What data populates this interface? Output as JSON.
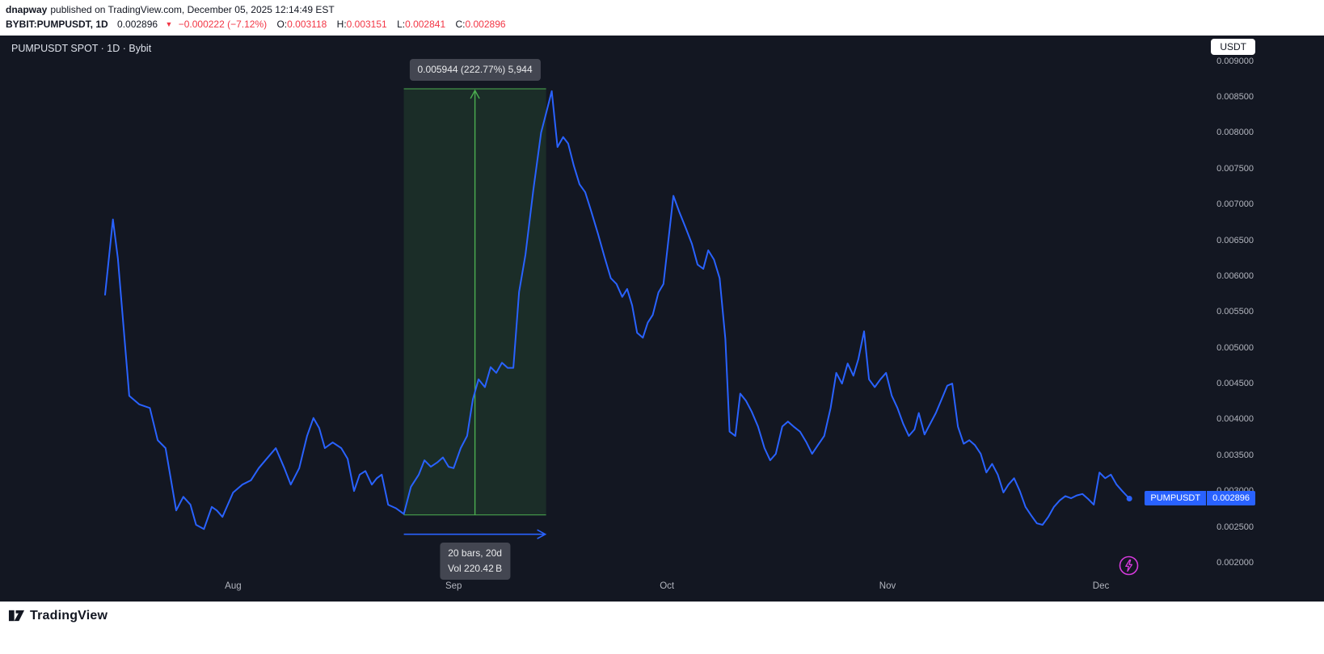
{
  "publish_bar": {
    "author": "dnapway",
    "published_info": "published on TradingView.com, December 05, 2025 12:14:49 EST",
    "symbol": "BYBIT:PUMPUSDT, 1D",
    "last_price": "0.002896",
    "down_arrow": "▼",
    "change": "−0.000222 (−7.12%)",
    "ohlc": {
      "o_label": "O:",
      "o": "0.003118",
      "h_label": "H:",
      "h": "0.003151",
      "l_label": "L:",
      "l": "0.002841",
      "c_label": "C:",
      "c": "0.002896"
    }
  },
  "chart": {
    "title": "PUMPUSDT SPOT · 1D · Bybit",
    "currency_button": "USDT",
    "price_badge": {
      "symbol": "PUMPUSDT",
      "price": "0.002896"
    }
  },
  "chart_data": {
    "type": "line",
    "title": "PUMPUSDT SPOT · 1D · Bybit",
    "symbol": "BYBIT:PUMPUSDT",
    "interval": "1D",
    "quote_currency": "USDT",
    "x_axis": {
      "start_date": "2025-07-14",
      "end_date": "2025-12-05",
      "unit": "day_offset_from_start_date"
    },
    "xlim": [
      0,
      144
    ],
    "ylim": [
      0.0018,
      0.00932
    ],
    "grid": false,
    "legend": false,
    "last_price": 0.002896,
    "x_ticks": [
      {
        "label": "Aug",
        "day": 18
      },
      {
        "label": "Sep",
        "day": 49
      },
      {
        "label": "Oct",
        "day": 79
      },
      {
        "label": "Nov",
        "day": 110
      },
      {
        "label": "Dec",
        "day": 140
      }
    ],
    "y_ticks": [
      0.009,
      0.0085,
      0.008,
      0.0075,
      0.007,
      0.0065,
      0.006,
      0.0055,
      0.005,
      0.0045,
      0.004,
      0.0035,
      0.003,
      0.0025,
      0.002
    ],
    "points": [
      [
        0,
        0.00574
      ],
      [
        1.1,
        0.00679
      ],
      [
        1.8,
        0.00625
      ],
      [
        3.4,
        0.00433
      ],
      [
        4.8,
        0.00421
      ],
      [
        6.3,
        0.00416
      ],
      [
        7.4,
        0.00371
      ],
      [
        8.5,
        0.0036
      ],
      [
        10,
        0.00273
      ],
      [
        11,
        0.00292
      ],
      [
        12,
        0.00281
      ],
      [
        12.8,
        0.00253
      ],
      [
        13.9,
        0.00247
      ],
      [
        15,
        0.00278
      ],
      [
        15.7,
        0.00273
      ],
      [
        16.5,
        0.00264
      ],
      [
        18,
        0.00298
      ],
      [
        19.3,
        0.00309
      ],
      [
        20.5,
        0.00315
      ],
      [
        21.6,
        0.00332
      ],
      [
        22.7,
        0.00345
      ],
      [
        24,
        0.0036
      ],
      [
        25.2,
        0.00332
      ],
      [
        26.1,
        0.00309
      ],
      [
        27.3,
        0.00332
      ],
      [
        28.4,
        0.00377
      ],
      [
        29.3,
        0.00402
      ],
      [
        30.1,
        0.00388
      ],
      [
        30.9,
        0.0036
      ],
      [
        32,
        0.00368
      ],
      [
        33.2,
        0.0036
      ],
      [
        34.1,
        0.00345
      ],
      [
        35,
        0.003
      ],
      [
        35.8,
        0.00323
      ],
      [
        36.6,
        0.00328
      ],
      [
        37.5,
        0.00309
      ],
      [
        38.2,
        0.00318
      ],
      [
        38.9,
        0.00323
      ],
      [
        39.8,
        0.00281
      ],
      [
        40.9,
        0.00276
      ],
      [
        42,
        0.00268
      ],
      [
        43,
        0.00306
      ],
      [
        44.1,
        0.00323
      ],
      [
        44.9,
        0.00343
      ],
      [
        45.8,
        0.00334
      ],
      [
        46.7,
        0.0034
      ],
      [
        47.5,
        0.00347
      ],
      [
        48.3,
        0.00334
      ],
      [
        49,
        0.00332
      ],
      [
        50,
        0.0036
      ],
      [
        50.9,
        0.00377
      ],
      [
        51.7,
        0.00428
      ],
      [
        52.5,
        0.00456
      ],
      [
        53.4,
        0.00445
      ],
      [
        54.2,
        0.00473
      ],
      [
        55,
        0.00465
      ],
      [
        55.8,
        0.00479
      ],
      [
        56.6,
        0.00472
      ],
      [
        57.4,
        0.00472
      ],
      [
        58.2,
        0.00578
      ],
      [
        59.1,
        0.0063
      ],
      [
        60.2,
        0.0072
      ],
      [
        61.3,
        0.008
      ],
      [
        62,
        0.00827
      ],
      [
        62.8,
        0.00858
      ],
      [
        63.6,
        0.0078
      ],
      [
        64.4,
        0.00794
      ],
      [
        65.1,
        0.00785
      ],
      [
        65.9,
        0.00754
      ],
      [
        66.7,
        0.00728
      ],
      [
        67.5,
        0.00717
      ],
      [
        68.3,
        0.00692
      ],
      [
        69.3,
        0.00659
      ],
      [
        70.2,
        0.00627
      ],
      [
        71.1,
        0.00597
      ],
      [
        71.9,
        0.00589
      ],
      [
        72.7,
        0.00571
      ],
      [
        73.4,
        0.00582
      ],
      [
        74.1,
        0.00559
      ],
      [
        74.8,
        0.00521
      ],
      [
        75.6,
        0.00514
      ],
      [
        76.3,
        0.00535
      ],
      [
        77,
        0.00546
      ],
      [
        77.8,
        0.00577
      ],
      [
        78.5,
        0.00589
      ],
      [
        79.9,
        0.00712
      ],
      [
        80.7,
        0.0069
      ],
      [
        81.6,
        0.00668
      ],
      [
        82.5,
        0.00645
      ],
      [
        83.3,
        0.00616
      ],
      [
        84.1,
        0.0061
      ],
      [
        84.8,
        0.00636
      ],
      [
        85.6,
        0.00623
      ],
      [
        86.4,
        0.00597
      ],
      [
        87.2,
        0.00512
      ],
      [
        87.8,
        0.00383
      ],
      [
        88.6,
        0.00377
      ],
      [
        89.3,
        0.00436
      ],
      [
        90.1,
        0.00426
      ],
      [
        90.9,
        0.00411
      ],
      [
        91.8,
        0.0039
      ],
      [
        92.7,
        0.0036
      ],
      [
        93.5,
        0.00343
      ],
      [
        94.3,
        0.00352
      ],
      [
        95.2,
        0.0039
      ],
      [
        96,
        0.00397
      ],
      [
        96.8,
        0.0039
      ],
      [
        97.7,
        0.00383
      ],
      [
        98.6,
        0.00368
      ],
      [
        99.4,
        0.00352
      ],
      [
        100.2,
        0.00364
      ],
      [
        101.1,
        0.00377
      ],
      [
        102,
        0.00416
      ],
      [
        102.8,
        0.00465
      ],
      [
        103.6,
        0.0045
      ],
      [
        104.4,
        0.00478
      ],
      [
        105.2,
        0.00461
      ],
      [
        105.9,
        0.00484
      ],
      [
        106.7,
        0.00523
      ],
      [
        107.4,
        0.00456
      ],
      [
        108.2,
        0.00445
      ],
      [
        109,
        0.00456
      ],
      [
        109.8,
        0.00465
      ],
      [
        110.6,
        0.00433
      ],
      [
        111.4,
        0.00416
      ],
      [
        112.2,
        0.00394
      ],
      [
        113,
        0.00377
      ],
      [
        113.8,
        0.00386
      ],
      [
        114.4,
        0.00409
      ],
      [
        115.2,
        0.00379
      ],
      [
        116,
        0.00394
      ],
      [
        116.8,
        0.00409
      ],
      [
        117.6,
        0.00428
      ],
      [
        118.4,
        0.00447
      ],
      [
        119.1,
        0.0045
      ],
      [
        119.9,
        0.0039
      ],
      [
        120.7,
        0.00366
      ],
      [
        121.5,
        0.00371
      ],
      [
        122.3,
        0.00364
      ],
      [
        123.1,
        0.00352
      ],
      [
        123.9,
        0.00326
      ],
      [
        124.7,
        0.00338
      ],
      [
        125.5,
        0.00323
      ],
      [
        126.3,
        0.00298
      ],
      [
        127,
        0.00309
      ],
      [
        127.8,
        0.00318
      ],
      [
        128.6,
        0.003
      ],
      [
        129.4,
        0.00278
      ],
      [
        130.2,
        0.00266
      ],
      [
        131,
        0.00255
      ],
      [
        131.8,
        0.00253
      ],
      [
        132.6,
        0.00264
      ],
      [
        133.4,
        0.00278
      ],
      [
        134.2,
        0.00287
      ],
      [
        135,
        0.00293
      ],
      [
        135.8,
        0.0029
      ],
      [
        136.6,
        0.00294
      ],
      [
        137.4,
        0.00296
      ],
      [
        138.2,
        0.00289
      ],
      [
        139,
        0.00281
      ],
      [
        139.8,
        0.00326
      ],
      [
        140.6,
        0.00318
      ],
      [
        141.4,
        0.00323
      ],
      [
        142.2,
        0.00309
      ],
      [
        143,
        0.003
      ],
      [
        144,
        0.002896
      ]
    ],
    "measure_tool": {
      "start_day": 42,
      "end_day": 62,
      "price_low": 0.002668,
      "price_high": 0.008612,
      "range_label": "0.005944 (222.77%) 5,944",
      "bars_label": "20 bars, 20d",
      "volume_label": "Vol 220.42 B"
    },
    "colors": {
      "line": "#2962ff",
      "measure_green": "#4caf50",
      "measure_fill": "rgba(76,175,80,0.15)",
      "date_arrow_blue": "#2962ff",
      "background": "#131722",
      "axis_text": "#b2b5be",
      "badge_blue": "#2962ff",
      "down_red": "#f23645",
      "flash_purple": "#d63add",
      "tooltip_bg": "#434651"
    }
  },
  "footer": {
    "brand": "TradingView"
  }
}
